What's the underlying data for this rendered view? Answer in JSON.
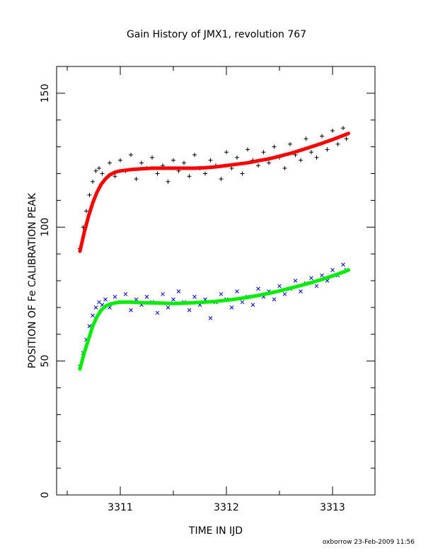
{
  "chart_data": {
    "type": "scatter",
    "title": "Gain History of JMX1, revolution 767",
    "xlabel": "TIME IN IJD",
    "ylabel": "POSITION OF Fe CALIBRATION PEAK",
    "xlim": [
      3310.4,
      3313.4
    ],
    "ylim": [
      0,
      160
    ],
    "xticks": [
      3311,
      3312,
      3313
    ],
    "yticks": [
      0,
      50,
      100,
      150
    ],
    "grid": false,
    "colors": {
      "upper_points": "#000000",
      "upper_fit": "#ff0000",
      "lower_points": "#0000cc",
      "lower_fit": "#00ee00"
    },
    "series": [
      {
        "kind": "points",
        "marker": "plus",
        "color_key": "upper_points",
        "x": [
          3310.62,
          3310.65,
          3310.68,
          3310.71,
          3310.74,
          3310.77,
          3310.8,
          3310.83,
          3310.86,
          3310.9,
          3310.95,
          3311.0,
          3311.05,
          3311.1,
          3311.15,
          3311.2,
          3311.25,
          3311.3,
          3311.35,
          3311.4,
          3311.45,
          3311.5,
          3311.55,
          3311.6,
          3311.65,
          3311.7,
          3311.75,
          3311.8,
          3311.85,
          3311.9,
          3311.95,
          3312.0,
          3312.05,
          3312.1,
          3312.15,
          3312.2,
          3312.25,
          3312.3,
          3312.35,
          3312.4,
          3312.45,
          3312.5,
          3312.55,
          3312.6,
          3312.65,
          3312.7,
          3312.75,
          3312.8,
          3312.85,
          3312.9,
          3312.95,
          3313.0,
          3313.05,
          3313.1,
          3313.13
        ],
        "y": [
          92,
          100,
          106,
          112,
          117,
          121,
          122,
          120,
          118,
          124,
          119,
          125,
          121,
          127,
          118,
          124,
          122,
          126,
          120,
          123,
          117,
          125,
          121,
          124,
          119,
          127,
          122,
          120,
          125,
          123,
          118,
          128,
          122,
          126,
          120,
          129,
          125,
          123,
          128,
          124,
          130,
          126,
          122,
          131,
          127,
          125,
          133,
          128,
          126,
          134,
          129,
          136,
          131,
          137,
          133
        ]
      },
      {
        "kind": "fit",
        "color_key": "upper_fit",
        "x": [
          3310.62,
          3310.66,
          3310.7,
          3310.74,
          3310.78,
          3310.82,
          3310.86,
          3310.9,
          3310.95,
          3311.0,
          3311.1,
          3311.2,
          3311.3,
          3311.4,
          3311.5,
          3311.6,
          3311.7,
          3311.8,
          3311.9,
          3312.0,
          3312.1,
          3312.2,
          3312.3,
          3312.4,
          3312.5,
          3312.6,
          3312.7,
          3312.8,
          3312.9,
          3313.0,
          3313.1,
          3313.15
        ],
        "y": [
          91,
          98,
          104,
          109,
          113,
          116,
          118,
          119.5,
          120.5,
          121,
          121.5,
          121.8,
          122,
          122,
          122,
          122,
          122,
          122.2,
          122.5,
          123,
          123.5,
          124,
          124.8,
          125.5,
          126.5,
          127.5,
          128.7,
          130,
          131.3,
          132.7,
          134.2,
          135
        ]
      },
      {
        "kind": "points",
        "marker": "cross",
        "color_key": "lower_points",
        "x": [
          3310.62,
          3310.65,
          3310.68,
          3310.71,
          3310.74,
          3310.77,
          3310.8,
          3310.83,
          3310.86,
          3310.9,
          3310.95,
          3311.0,
          3311.05,
          3311.1,
          3311.15,
          3311.2,
          3311.25,
          3311.3,
          3311.35,
          3311.4,
          3311.45,
          3311.5,
          3311.55,
          3311.6,
          3311.65,
          3311.7,
          3311.75,
          3311.8,
          3311.85,
          3311.9,
          3311.95,
          3312.0,
          3312.05,
          3312.1,
          3312.15,
          3312.2,
          3312.25,
          3312.3,
          3312.35,
          3312.4,
          3312.45,
          3312.5,
          3312.55,
          3312.6,
          3312.65,
          3312.7,
          3312.75,
          3312.8,
          3312.85,
          3312.9,
          3312.95,
          3313.0,
          3313.05,
          3313.1,
          3313.13
        ],
        "y": [
          48,
          53,
          58,
          63,
          67,
          70,
          72,
          71,
          73,
          70,
          74,
          72,
          75,
          69,
          73,
          71,
          74,
          72,
          68,
          75,
          70,
          73,
          76,
          72,
          69,
          74,
          71,
          73,
          66,
          72,
          75,
          73,
          70,
          76,
          72,
          74,
          71,
          77,
          74,
          76,
          73,
          78,
          75,
          77,
          80,
          76,
          79,
          81,
          78,
          82,
          80,
          84,
          82,
          86,
          84
        ]
      },
      {
        "kind": "fit",
        "color_key": "lower_fit",
        "x": [
          3310.62,
          3310.66,
          3310.7,
          3310.74,
          3310.78,
          3310.82,
          3310.86,
          3310.9,
          3310.95,
          3311.0,
          3311.1,
          3311.2,
          3311.3,
          3311.4,
          3311.5,
          3311.6,
          3311.7,
          3311.8,
          3311.9,
          3312.0,
          3312.1,
          3312.2,
          3312.3,
          3312.4,
          3312.5,
          3312.6,
          3312.7,
          3312.8,
          3312.9,
          3313.0,
          3313.1,
          3313.15
        ],
        "y": [
          47,
          53,
          58,
          63,
          66.5,
          69,
          70.5,
          71.2,
          71.7,
          72,
          72,
          71.8,
          71.7,
          71.6,
          71.5,
          71.6,
          71.8,
          72,
          72.3,
          72.7,
          73.2,
          73.8,
          74.5,
          75.3,
          76.2,
          77.2,
          78.2,
          79.3,
          80.5,
          81.8,
          83.2,
          84
        ]
      }
    ],
    "footer_note": "oxborrow 23-Feb-2009 11:56"
  }
}
